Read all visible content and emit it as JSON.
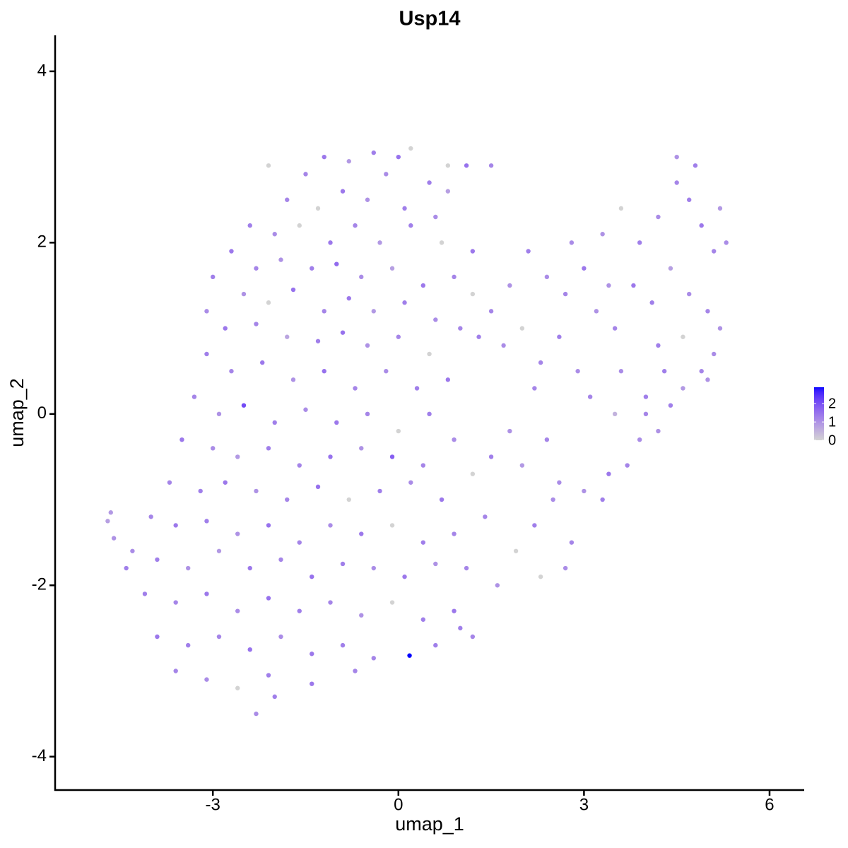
{
  "chart_data": {
    "type": "scatter",
    "title": "Usp14",
    "xlabel": "umap_1",
    "ylabel": "umap_2",
    "xlim": [
      -5.55,
      6.56
    ],
    "ylim": [
      -4.39,
      4.42
    ],
    "xticks": [
      -3,
      0,
      3,
      6
    ],
    "yticks": [
      -4,
      -2,
      0,
      2,
      4
    ],
    "colors": [
      "#d3d3d3",
      "#0000ff"
    ],
    "colorbar": {
      "lim": [
        0,
        2.9
      ],
      "ticks": [
        0,
        1,
        2
      ]
    },
    "x": [
      -2.1,
      -1.5,
      -1.2,
      -0.8,
      -0.4,
      0,
      0.2,
      -0.2,
      0.5,
      0.8,
      -1.8,
      -1.3,
      -0.9,
      -0.5,
      0.1,
      0.6,
      1.1,
      1.5,
      -2.4,
      -2.0,
      -1.6,
      -1.1,
      -0.7,
      -0.3,
      0.2,
      0.7,
      -2.7,
      -2.3,
      -1.9,
      -1.4,
      -1.0,
      -0.6,
      -0.1,
      0.4,
      0.9,
      1.2,
      -3.0,
      -2.5,
      -2.1,
      -1.7,
      -1.2,
      -0.8,
      -0.4,
      0.1,
      0.6,
      1.0,
      -3.1,
      -2.8,
      -2.3,
      -1.8,
      -1.3,
      -0.9,
      -0.5,
      0.0,
      0.5,
      1.3,
      -3.1,
      -2.7,
      -2.2,
      -1.7,
      -1.2,
      -0.7,
      -0.2,
      0.3,
      0.8,
      -3.3,
      -2.9,
      -2.5,
      -2.0,
      -1.5,
      -1.0,
      -0.5,
      0.0,
      0.5,
      -3.5,
      -3.0,
      -2.6,
      -2.1,
      -1.6,
      -1.1,
      -0.6,
      -0.1,
      0.4,
      0.9,
      -3.7,
      -3.2,
      -2.8,
      -2.3,
      -1.8,
      -1.3,
      -0.8,
      -0.3,
      0.2,
      0.7,
      1.2,
      -4.0,
      -3.6,
      -3.1,
      -2.6,
      -2.1,
      -1.6,
      -1.1,
      -0.6,
      -0.1,
      0.4,
      0.9,
      -4.3,
      -3.9,
      -3.4,
      -2.9,
      -2.4,
      -1.9,
      -1.4,
      -0.9,
      -0.4,
      0.1,
      0.6,
      1.1,
      -4.1,
      -3.6,
      -3.1,
      -2.6,
      -2.1,
      -1.6,
      -1.1,
      -0.6,
      -0.1,
      0.4,
      0.9,
      -3.9,
      -3.4,
      -2.9,
      -2.4,
      -1.9,
      -1.4,
      -0.9,
      -0.4,
      0.18,
      0.6,
      -3.6,
      -3.1,
      -2.6,
      -2.1,
      -1.4,
      -0.7,
      -2.3,
      -2.0,
      -4.7,
      -4.65,
      -4.6,
      -4.4,
      1.4,
      1.6,
      1.9,
      2.2,
      2.5,
      2.8,
      3.0,
      3.3,
      3.4,
      3.7,
      3.9,
      4.2,
      4.4,
      4.6,
      4.9,
      5.1,
      1.5,
      2.0,
      2.4,
      2.6,
      3.5,
      4.0,
      1.8,
      2.3,
      1.2,
      1.0,
      2.7,
      1.5,
      1.8,
      2.1,
      2.4,
      2.7,
      3.0,
      3.3,
      3.6,
      3.9,
      4.2,
      4.5,
      4.5,
      4.7,
      4.9,
      5.1,
      5.3,
      5.2,
      4.8,
      1.7,
      2.0,
      2.3,
      2.6,
      2.9,
      3.2,
      3.5,
      3.8,
      4.1,
      4.4,
      4.7,
      5.0,
      5.2,
      3.1,
      3.6,
      4.2,
      4.6,
      5.0,
      2.2,
      2.8,
      1.2,
      0.8,
      3.4,
      4.0,
      4.3
    ],
    "y": [
      2.9,
      2.8,
      3.0,
      2.95,
      3.05,
      3.0,
      3.1,
      2.8,
      2.7,
      2.6,
      2.5,
      2.4,
      2.6,
      2.5,
      2.4,
      2.3,
      2.9,
      2.9,
      2.2,
      2.1,
      2.2,
      2.0,
      2.2,
      2.0,
      2.2,
      2.0,
      1.9,
      1.7,
      1.8,
      1.7,
      1.75,
      1.6,
      1.7,
      1.5,
      1.6,
      1.4,
      1.6,
      1.4,
      1.3,
      1.45,
      1.2,
      1.35,
      1.2,
      1.3,
      1.1,
      1.0,
      1.2,
      1.0,
      1.05,
      0.9,
      0.85,
      0.95,
      0.8,
      0.9,
      0.7,
      0.9,
      0.7,
      0.5,
      0.6,
      0.4,
      0.5,
      0.3,
      0.5,
      0.3,
      0.4,
      0.2,
      0.0,
      0.1,
      -0.1,
      0.05,
      -0.1,
      0.0,
      -0.2,
      0.0,
      -0.3,
      -0.4,
      -0.5,
      -0.4,
      -0.6,
      -0.5,
      -0.4,
      -0.5,
      -0.6,
      -0.3,
      -0.8,
      -0.9,
      -0.8,
      -0.9,
      -1.0,
      -0.85,
      -1.0,
      -0.9,
      -0.8,
      -1.0,
      -0.7,
      -1.2,
      -1.3,
      -1.25,
      -1.4,
      -1.3,
      -1.5,
      -1.3,
      -1.4,
      -1.3,
      -1.5,
      -1.4,
      -1.6,
      -1.7,
      -1.8,
      -1.6,
      -1.8,
      -1.7,
      -1.9,
      -1.75,
      -1.8,
      -1.9,
      -1.75,
      -1.8,
      -2.1,
      -2.2,
      -2.1,
      -2.3,
      -2.15,
      -2.3,
      -2.2,
      -2.35,
      -2.2,
      -2.4,
      -2.3,
      -2.6,
      -2.7,
      -2.6,
      -2.75,
      -2.6,
      -2.8,
      -2.7,
      -2.85,
      -2.82,
      -2.7,
      -3.0,
      -3.1,
      -3.2,
      -3.05,
      -3.15,
      -3.0,
      -3.5,
      -3.3,
      -1.25,
      -1.15,
      -1.45,
      -1.8,
      -1.2,
      -2.0,
      -1.6,
      -1.3,
      -1.0,
      -1.5,
      -0.9,
      -1.0,
      -0.7,
      -0.6,
      -0.3,
      -0.2,
      0.1,
      0.3,
      0.5,
      0.7,
      -0.5,
      -0.6,
      -0.3,
      -0.8,
      0.0,
      0.2,
      -0.2,
      -1.9,
      -2.6,
      -2.5,
      -1.8,
      1.2,
      1.5,
      1.9,
      1.6,
      1.4,
      1.7,
      2.1,
      2.4,
      2.0,
      2.3,
      2.7,
      3.0,
      2.5,
      2.2,
      1.9,
      2.0,
      2.4,
      2.9,
      0.8,
      1.0,
      0.6,
      0.9,
      0.5,
      1.2,
      1.0,
      1.5,
      1.3,
      1.7,
      1.4,
      1.2,
      1.0,
      0.2,
      0.5,
      0.8,
      0.9,
      0.4,
      0.3,
      2.0,
      1.9,
      2.9,
      1.5,
      0.0,
      0.5
    ],
    "values": [
      0,
      1.2,
      1.4,
      0.9,
      1.3,
      1.5,
      0,
      1.1,
      1.3,
      0.8,
      1.2,
      0,
      1.4,
      1.0,
      1.3,
      1.1,
      1.5,
      1.2,
      1.3,
      1.1,
      0,
      1.4,
      1.2,
      0.9,
      1.3,
      0,
      1.4,
      1.2,
      1.0,
      1.3,
      1.6,
      1.1,
      0.8,
      1.4,
      1.2,
      0,
      1.3,
      1.0,
      0,
      1.5,
      1.2,
      1.4,
      0.9,
      1.3,
      1.1,
      1.2,
      1.1,
      1.4,
      1.2,
      0.7,
      1.3,
      1.5,
      1.0,
      1.2,
      0,
      1.3,
      1.3,
      1.2,
      1.4,
      1.0,
      1.5,
      1.2,
      1.1,
      1.3,
      1.4,
      1.2,
      1.0,
      2.1,
      1.3,
      1.1,
      1.4,
      1.2,
      0,
      1.3,
      1.4,
      1.1,
      0.9,
      1.3,
      1.2,
      1.5,
      1.0,
      1.8,
      1.2,
      1.1,
      1.2,
      1.3,
      1.4,
      1.0,
      1.2,
      1.5,
      0,
      1.3,
      1.1,
      1.4,
      0,
      1.2,
      1.4,
      1.3,
      1.0,
      1.5,
      1.2,
      1.1,
      1.4,
      0,
      1.3,
      1.2,
      1.1,
      1.3,
      1.0,
      0.9,
      1.4,
      1.2,
      1.5,
      1.3,
      1.1,
      1.4,
      1.0,
      1.2,
      1.3,
      1.2,
      1.4,
      1.1,
      1.5,
      1.3,
      1.2,
      1.0,
      0,
      1.3,
      1.4,
      1.4,
      1.3,
      1.2,
      1.5,
      1.1,
      1.4,
      1.3,
      1.2,
      2.9,
      1.3,
      1.2,
      1.1,
      0,
      1.3,
      1.4,
      1.2,
      1.1,
      1.3,
      0.8,
      0.9,
      1.0,
      1.3,
      1.2,
      1.0,
      0,
      1.3,
      1.1,
      1.2,
      1.0,
      1.3,
      1.4,
      1.2,
      1.1,
      1.0,
      1.3,
      0.9,
      1.2,
      1.1,
      1.3,
      0.9,
      1.2,
      1.1,
      0.5,
      1.3,
      1.0,
      0,
      1.2,
      1.3,
      1.1,
      1.2,
      1.0,
      1.3,
      1.1,
      1.2,
      1.4,
      1.0,
      0,
      1.3,
      1.1,
      1.2,
      1.0,
      1.3,
      1.4,
      1.2,
      1.1,
      0.9,
      1.3,
      1.1,
      0,
      1.2,
      1.3,
      1.1,
      1.0,
      1.2,
      1.4,
      1.3,
      0.8,
      1.1,
      1.2,
      1.0,
      1.2,
      1.1,
      1.3,
      0,
      1.0,
      1.2,
      1.1,
      1.4,
      0,
      1.0,
      1.2,
      1.3
    ]
  }
}
